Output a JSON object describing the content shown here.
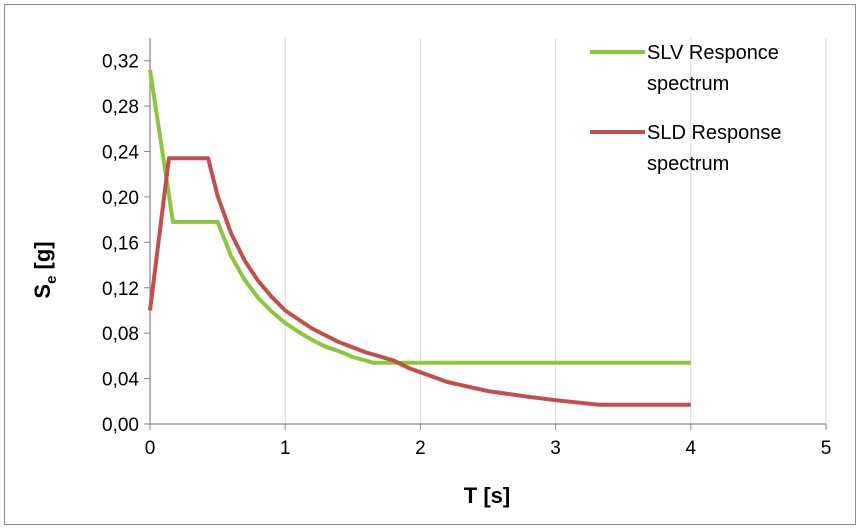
{
  "chart_data": {
    "type": "line",
    "xlabel": "T [s]",
    "ylabel_main": "S",
    "ylabel_sub": "e",
    "ylabel_rest": " [g]",
    "xlim": [
      0,
      5
    ],
    "ylim": [
      0,
      0.34
    ],
    "x_ticks": [
      0,
      1,
      2,
      3,
      4,
      5
    ],
    "x_tick_labels": [
      "0",
      "1",
      "2",
      "3",
      "4",
      "5"
    ],
    "y_ticks": [
      0,
      0.04,
      0.08,
      0.12,
      0.16,
      0.2,
      0.24,
      0.28,
      0.32
    ],
    "y_tick_labels": [
      "0,00",
      "0,04",
      "0,08",
      "0,12",
      "0,16",
      "0,20",
      "0,24",
      "0,28",
      "0,32"
    ],
    "grid": "vertical",
    "legend": "top-right",
    "series": [
      {
        "name_lines": [
          "SLV Responce",
          "spectrum"
        ],
        "color": "#8cc63f",
        "x": [
          0,
          0.17,
          0.5,
          0.6,
          0.7,
          0.8,
          0.9,
          1.0,
          1.1,
          1.2,
          1.3,
          1.4,
          1.5,
          1.65,
          4.0
        ],
        "y": [
          0.312,
          0.178,
          0.178,
          0.148,
          0.127,
          0.111,
          0.099,
          0.089,
          0.081,
          0.074,
          0.068,
          0.064,
          0.059,
          0.054,
          0.054
        ]
      },
      {
        "name_lines": [
          "SLD Response",
          "spectrum"
        ],
        "color": "#c0504d",
        "x": [
          0,
          0.14,
          0.43,
          0.5,
          0.6,
          0.7,
          0.8,
          0.9,
          1.0,
          1.2,
          1.4,
          1.6,
          1.8,
          1.92,
          2.2,
          2.5,
          2.8,
          3.0,
          3.32,
          4.0
        ],
        "y": [
          0.1,
          0.234,
          0.234,
          0.201,
          0.168,
          0.144,
          0.126,
          0.112,
          0.1,
          0.084,
          0.072,
          0.063,
          0.056,
          0.049,
          0.037,
          0.029,
          0.024,
          0.021,
          0.017,
          0.017
        ]
      }
    ]
  }
}
